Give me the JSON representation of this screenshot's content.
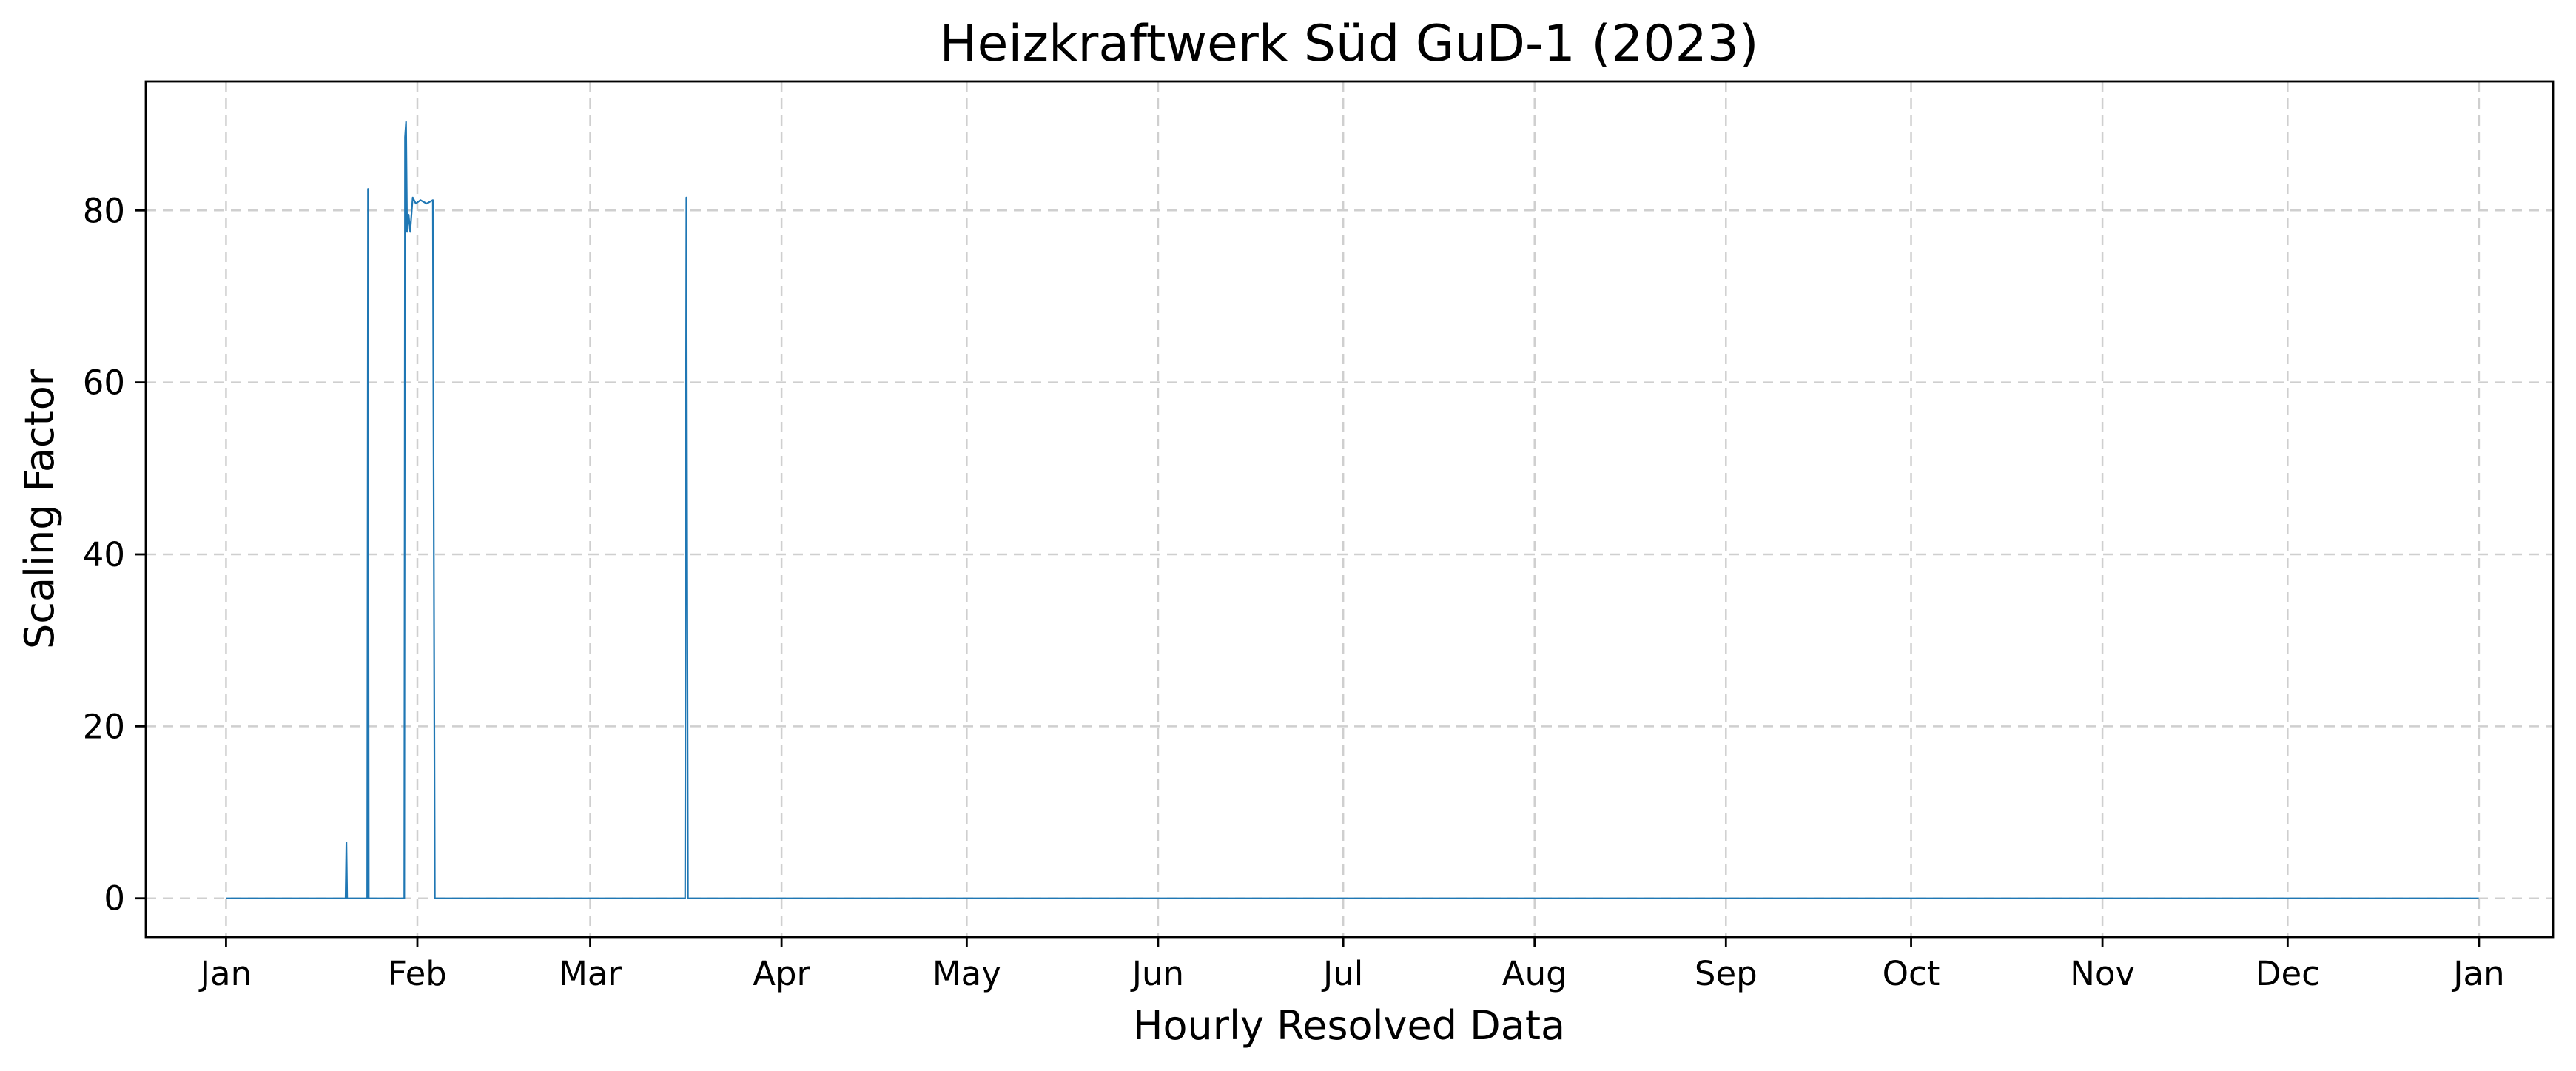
{
  "chart_data": {
    "type": "line",
    "title": "Heizkraftwerk Süd GuD-1 (2023)",
    "xlabel": "Hourly Resolved Data",
    "ylabel": "Scaling Factor",
    "xlim": [
      "2022-12-19",
      "2024-01-13"
    ],
    "ylim": [
      -4.5,
      95
    ],
    "grid": true,
    "x_ticks": [
      {
        "date": "2023-01-01",
        "label": "Jan"
      },
      {
        "date": "2023-02-01",
        "label": "Feb"
      },
      {
        "date": "2023-03-01",
        "label": "Mar"
      },
      {
        "date": "2023-04-01",
        "label": "Apr"
      },
      {
        "date": "2023-05-01",
        "label": "May"
      },
      {
        "date": "2023-06-01",
        "label": "Jun"
      },
      {
        "date": "2023-07-01",
        "label": "Jul"
      },
      {
        "date": "2023-08-01",
        "label": "Aug"
      },
      {
        "date": "2023-09-01",
        "label": "Sep"
      },
      {
        "date": "2023-10-01",
        "label": "Oct"
      },
      {
        "date": "2023-11-01",
        "label": "Nov"
      },
      {
        "date": "2023-12-01",
        "label": "Dec"
      },
      {
        "date": "2024-01-01",
        "label": "Jan"
      }
    ],
    "y_ticks": [
      0,
      20,
      40,
      60,
      80
    ],
    "series": [
      {
        "color": "#1f77b4",
        "points": [
          {
            "t": "2023-01-01 00:00",
            "y": 0
          },
          {
            "t": "2023-01-20 09:00",
            "y": 0
          },
          {
            "t": "2023-01-20 12:00",
            "y": 6.5
          },
          {
            "t": "2023-01-20 15:00",
            "y": 0
          },
          {
            "t": "2023-01-23 21:00",
            "y": 0
          },
          {
            "t": "2023-01-24 00:00",
            "y": 82.5
          },
          {
            "t": "2023-01-24 03:00",
            "y": 0
          },
          {
            "t": "2023-01-29 21:00",
            "y": 0
          },
          {
            "t": "2023-01-30 00:00",
            "y": 88.5
          },
          {
            "t": "2023-01-30 04:00",
            "y": 90.3
          },
          {
            "t": "2023-01-30 08:00",
            "y": 77.5
          },
          {
            "t": "2023-01-30 14:00",
            "y": 79.5
          },
          {
            "t": "2023-01-30 20:00",
            "y": 77.5
          },
          {
            "t": "2023-01-31 06:00",
            "y": 81.5
          },
          {
            "t": "2023-01-31 18:00",
            "y": 80.8
          },
          {
            "t": "2023-02-01 12:00",
            "y": 81.2
          },
          {
            "t": "2023-02-02 12:00",
            "y": 80.8
          },
          {
            "t": "2023-02-03 12:00",
            "y": 81.2
          },
          {
            "t": "2023-02-03 20:00",
            "y": 0
          },
          {
            "t": "2023-03-16 09:00",
            "y": 0
          },
          {
            "t": "2023-03-16 14:00",
            "y": 81.5
          },
          {
            "t": "2023-03-16 20:00",
            "y": 0
          },
          {
            "t": "2023-12-31 23:00",
            "y": 0
          }
        ]
      }
    ]
  }
}
